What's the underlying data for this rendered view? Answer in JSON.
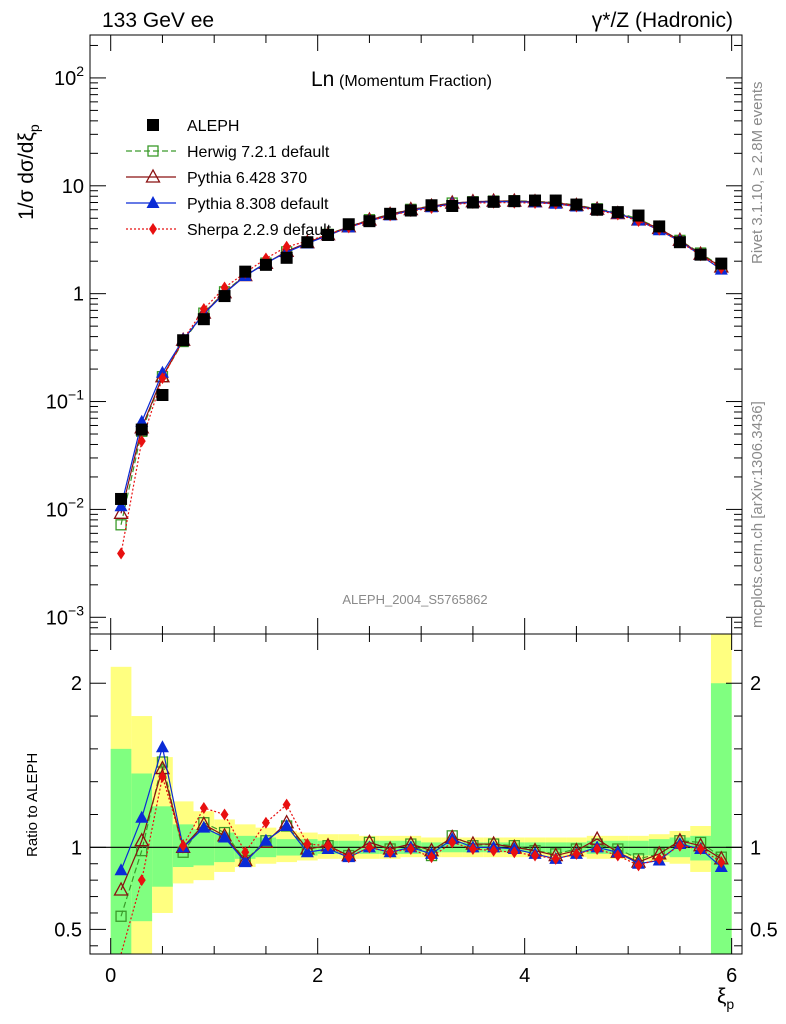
{
  "header": {
    "left": "133 GeV ee",
    "right": "γ*/Z (Hadronic)"
  },
  "side_labels": {
    "top": "Rivet 3.1.10, ≥ 2.8M events",
    "bottom": "mcplots.cern.ch [arXiv:1306.3436]"
  },
  "chart_data": [
    {
      "type": "scatter",
      "panel": "main",
      "title": "Ln(Momentum Fraction)",
      "title_main": "Ln",
      "title_sub": "(Momentum Fraction)",
      "analysis_label": "ALEPH_2004_S5765862",
      "ylabel": "1/σ dσ/dξp",
      "xlabel": "ξp",
      "yscale": "log",
      "ylim": [
        0.0007,
        250
      ],
      "xlim": [
        -0.2,
        6.1
      ],
      "y_ticks": [
        "10−3",
        "10−2",
        "10−1",
        "1",
        "10",
        "102"
      ],
      "x": [
        0.1,
        0.3,
        0.5,
        0.7,
        0.9,
        1.1,
        1.3,
        1.5,
        1.7,
        1.9,
        2.1,
        2.3,
        2.5,
        2.7,
        2.9,
        3.1,
        3.3,
        3.5,
        3.7,
        3.9,
        4.1,
        4.3,
        4.5,
        4.7,
        4.9,
        5.1,
        5.3,
        5.5,
        5.7,
        5.9
      ],
      "series": [
        {
          "name": "ALEPH",
          "color": "#000000",
          "marker": "square-filled",
          "values": [
            0.0125,
            0.055,
            0.115,
            0.37,
            0.58,
            0.95,
            1.6,
            1.85,
            2.15,
            3.0,
            3.5,
            4.4,
            4.7,
            5.5,
            5.9,
            6.6,
            6.5,
            7.0,
            7.1,
            7.2,
            7.3,
            7.3,
            6.7,
            6.0,
            5.7,
            5.3,
            4.2,
            3.0,
            2.3,
            1.9
          ]
        },
        {
          "name": "Herwig 7.2.1 default",
          "color": "#3a9a2a",
          "marker": "square-open",
          "values": [
            0.0072,
            0.053,
            0.17,
            0.36,
            0.66,
            1.04,
            1.48,
            1.92,
            2.44,
            2.98,
            3.55,
            4.18,
            4.85,
            5.45,
            6.05,
            6.52,
            6.92,
            7.12,
            7.22,
            7.27,
            7.17,
            7.02,
            6.62,
            6.12,
            5.65,
            4.92,
            4.02,
            3.12,
            2.38,
            1.78
          ]
        },
        {
          "name": "Pythia 6.428 370",
          "color": "#8b1010",
          "marker": "triangle-open",
          "values": [
            0.0092,
            0.057,
            0.17,
            0.37,
            0.66,
            1.02,
            1.47,
            1.91,
            2.47,
            2.97,
            3.52,
            4.17,
            4.82,
            5.42,
            6.02,
            6.47,
            6.92,
            7.12,
            7.22,
            7.22,
            7.12,
            6.97,
            6.57,
            6.07,
            5.52,
            4.82,
            4.02,
            3.12,
            2.32,
            1.77
          ]
        },
        {
          "name": "Pythia 8.308 default",
          "color": "#0a2bd6",
          "marker": "triangle-filled",
          "values": [
            0.0107,
            0.065,
            0.185,
            0.375,
            0.65,
            1.01,
            1.46,
            1.92,
            2.42,
            2.92,
            3.47,
            4.12,
            4.72,
            5.32,
            5.92,
            6.32,
            6.82,
            7.02,
            7.12,
            7.12,
            7.02,
            6.82,
            6.42,
            6.02,
            5.52,
            4.77,
            3.87,
            3.07,
            2.27,
            1.67
          ]
        },
        {
          "name": "Sherpa 2.2.9 default",
          "color": "#e81010",
          "marker": "diamond-filled",
          "values": [
            0.0039,
            0.043,
            0.165,
            0.375,
            0.72,
            1.14,
            1.56,
            2.12,
            2.72,
            3.07,
            3.52,
            4.12,
            4.72,
            5.32,
            5.82,
            6.22,
            6.72,
            6.92,
            6.97,
            6.97,
            6.92,
            6.82,
            6.42,
            5.92,
            5.42,
            4.72,
            3.92,
            3.02,
            2.27,
            1.72
          ]
        }
      ]
    },
    {
      "type": "scatter",
      "panel": "ratio",
      "ylabel": "Ratio to ALEPH",
      "xlabel": "ξp",
      "ylim": [
        0.35,
        2.3
      ],
      "y_ticks": [
        "0.5",
        "1",
        "2"
      ],
      "x_ticks": [
        "0",
        "2",
        "4",
        "6"
      ],
      "x": [
        0.1,
        0.3,
        0.5,
        0.7,
        0.9,
        1.1,
        1.3,
        1.5,
        1.7,
        1.9,
        2.1,
        2.3,
        2.5,
        2.7,
        2.9,
        3.1,
        3.3,
        3.5,
        3.7,
        3.9,
        4.1,
        4.3,
        4.5,
        4.7,
        4.9,
        5.1,
        5.3,
        5.5,
        5.7,
        5.9
      ],
      "bands": {
        "edges": [
          0.0,
          0.2,
          0.4,
          0.6,
          0.8,
          1.0,
          1.2,
          1.4,
          1.6,
          1.8,
          2.0,
          2.2,
          2.4,
          2.6,
          2.8,
          3.0,
          3.2,
          3.4,
          3.6,
          3.8,
          4.0,
          4.2,
          4.4,
          4.6,
          4.8,
          5.0,
          5.2,
          5.4,
          5.6,
          5.8,
          6.0
        ],
        "yellow_color": "#ffff80",
        "green_color": "#80ff80",
        "yellow_lo": [
          0.35,
          0.35,
          0.6,
          0.78,
          0.8,
          0.85,
          0.88,
          0.9,
          0.91,
          0.92,
          0.93,
          0.93,
          0.93,
          0.93,
          0.94,
          0.94,
          0.94,
          0.94,
          0.94,
          0.94,
          0.94,
          0.94,
          0.94,
          0.93,
          0.93,
          0.92,
          0.91,
          0.9,
          0.85,
          0.35
        ],
        "yellow_hi": [
          2.1,
          1.8,
          1.55,
          1.28,
          1.22,
          1.17,
          1.14,
          1.12,
          1.1,
          1.09,
          1.08,
          1.08,
          1.07,
          1.07,
          1.07,
          1.06,
          1.06,
          1.06,
          1.06,
          1.06,
          1.06,
          1.06,
          1.06,
          1.07,
          1.07,
          1.07,
          1.08,
          1.1,
          1.13,
          2.3
        ],
        "green_lo": [
          0.35,
          0.55,
          0.76,
          0.88,
          0.89,
          0.91,
          0.93,
          0.94,
          0.95,
          0.95,
          0.96,
          0.96,
          0.96,
          0.96,
          0.96,
          0.97,
          0.97,
          0.97,
          0.97,
          0.97,
          0.97,
          0.97,
          0.97,
          0.96,
          0.96,
          0.95,
          0.95,
          0.94,
          0.92,
          0.35
        ],
        "green_hi": [
          1.6,
          1.45,
          1.25,
          1.14,
          1.11,
          1.09,
          1.07,
          1.06,
          1.05,
          1.05,
          1.04,
          1.04,
          1.04,
          1.04,
          1.04,
          1.03,
          1.03,
          1.03,
          1.03,
          1.03,
          1.03,
          1.03,
          1.03,
          1.04,
          1.04,
          1.04,
          1.05,
          1.06,
          1.07,
          2.0
        ]
      },
      "series": [
        {
          "name": "Herwig 7.2.1 default",
          "color": "#3a9a2a",
          "marker": "square-open",
          "dash": "6,3",
          "values": [
            0.58,
            0.98,
            1.52,
            0.97,
            1.15,
            1.09,
            0.92,
            1.04,
            1.13,
            0.99,
            1.01,
            0.95,
            1.03,
            0.99,
            1.02,
            0.95,
            1.07,
            1.01,
            1.02,
            1.01,
            0.98,
            0.96,
            0.99,
            1.02,
            0.99,
            0.93,
            0.96,
            1.04,
            1.03,
            0.94
          ]
        },
        {
          "name": "Pythia 6.428 370",
          "color": "#8b1010",
          "marker": "triangle-open",
          "dash": "",
          "values": [
            0.74,
            1.04,
            1.48,
            1.0,
            1.14,
            1.07,
            0.92,
            1.03,
            1.15,
            0.99,
            1.01,
            0.95,
            1.03,
            0.99,
            1.02,
            0.98,
            1.06,
            1.02,
            1.02,
            1.0,
            0.98,
            0.95,
            0.98,
            1.05,
            0.97,
            0.91,
            0.96,
            1.04,
            1.01,
            0.93
          ]
        },
        {
          "name": "Pythia 8.308 default",
          "color": "#0a2bd6",
          "marker": "triangle-filled",
          "dash": "",
          "values": [
            0.86,
            1.18,
            1.61,
            1.0,
            1.12,
            1.06,
            0.91,
            1.04,
            1.13,
            0.97,
            0.99,
            0.94,
            1.0,
            0.97,
            1.0,
            0.96,
            1.05,
            1.0,
            1.0,
            0.99,
            0.96,
            0.93,
            0.96,
            1.0,
            0.97,
            0.9,
            0.92,
            1.02,
            0.99,
            0.88
          ]
        },
        {
          "name": "Sherpa 2.2.9 default",
          "color": "#e81010",
          "marker": "diamond-filled",
          "dash": "2,2",
          "values": [
            0.31,
            0.8,
            1.43,
            1.01,
            1.24,
            1.2,
            0.97,
            1.15,
            1.26,
            1.02,
            1.01,
            0.94,
            1.0,
            0.97,
            0.99,
            0.94,
            1.03,
            0.99,
            0.98,
            0.97,
            0.95,
            0.93,
            0.96,
            0.99,
            0.95,
            0.89,
            0.93,
            1.01,
            0.99,
            0.91
          ]
        }
      ]
    }
  ]
}
